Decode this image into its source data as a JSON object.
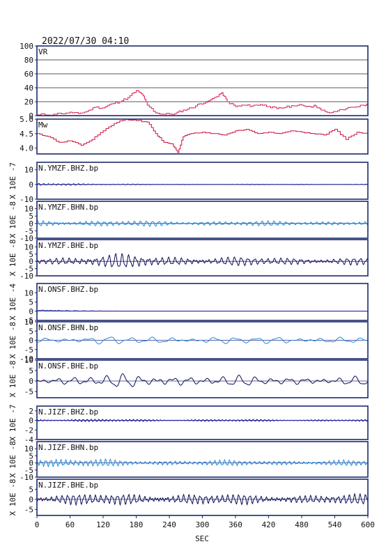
{
  "header": {
    "timestamp": "2022/07/30 04:10"
  },
  "x_axis": {
    "label": "SEC",
    "range": [
      0,
      600
    ],
    "ticks": [
      0,
      60,
      120,
      180,
      240,
      300,
      360,
      420,
      480,
      540,
      600
    ]
  },
  "colors": {
    "frame": "#1a2a6c",
    "vr": "#d6204f",
    "mw": "#c8103a",
    "z": "#1d1d9e",
    "n": "#1e8ad6",
    "e": "#0b0b55",
    "zero": "#2a2a8c"
  },
  "chart_data": [
    {
      "type": "line",
      "name": "VR",
      "label": "VR",
      "ylim": [
        0,
        100
      ],
      "yticks": [
        0,
        20,
        40,
        60,
        80,
        100
      ],
      "ylabel": "",
      "grid": true,
      "x": [
        0,
        30,
        60,
        75,
        90,
        105,
        120,
        135,
        150,
        165,
        180,
        190,
        200,
        215,
        230,
        250,
        265,
        280,
        295,
        310,
        325,
        335,
        345,
        360,
        375,
        390,
        405,
        420,
        435,
        450,
        465,
        480,
        495,
        505,
        515,
        530,
        545,
        560,
        575,
        590,
        600
      ],
      "y": [
        1,
        2,
        5,
        3,
        6,
        12,
        11,
        17,
        20,
        26,
        36,
        31,
        15,
        4,
        2,
        3,
        8,
        11,
        17,
        21,
        27,
        33,
        20,
        13,
        15,
        14,
        16,
        13,
        10,
        12,
        14,
        15,
        13,
        14,
        8,
        4,
        7,
        10,
        12,
        15,
        16
      ]
    },
    {
      "type": "line",
      "name": "Mw",
      "label": "Mw",
      "ylim": [
        3.8,
        5.0
      ],
      "yticks": [
        4.0,
        4.5,
        5.0
      ],
      "ylabel": "",
      "grid": false,
      "x": [
        0,
        20,
        40,
        60,
        80,
        100,
        120,
        140,
        160,
        180,
        200,
        215,
        230,
        245,
        255,
        265,
        280,
        300,
        320,
        340,
        360,
        380,
        400,
        420,
        440,
        460,
        480,
        500,
        520,
        540,
        560,
        580,
        600
      ],
      "y": [
        4.5,
        4.4,
        4.2,
        4.25,
        4.1,
        4.3,
        4.6,
        4.85,
        5.0,
        4.95,
        4.9,
        4.5,
        4.2,
        4.15,
        3.85,
        4.4,
        4.5,
        4.55,
        4.5,
        4.45,
        4.6,
        4.65,
        4.5,
        4.55,
        4.5,
        4.6,
        4.55,
        4.5,
        4.45,
        4.65,
        4.3,
        4.55,
        4.5
      ]
    },
    {
      "type": "line",
      "label": "N.YMZF.BHZ.bp",
      "ylabel": "X 10E -7",
      "ylim": [
        -10,
        15
      ],
      "yticks": [
        -10,
        0,
        10
      ],
      "seriesColor": "z",
      "wave": {
        "amp": [
          1.2,
          0.25,
          0.2,
          0.2
        ],
        "period": 9,
        "offset": 0,
        "seed": 1
      }
    },
    {
      "type": "line",
      "label": "N.YMZF.BHN.bp",
      "ylabel": "X 10E -8",
      "ylim": [
        -10,
        15
      ],
      "yticks": [
        -10,
        -5,
        0,
        5,
        10
      ],
      "seriesColor": "n",
      "wave": {
        "amp": [
          2.2,
          1.8,
          1.6,
          1.5
        ],
        "period": 11,
        "offset": 0,
        "seed": 2
      }
    },
    {
      "type": "line",
      "label": "N.YMZF.BHE.bp",
      "ylabel": "X 10E -8",
      "ylim": [
        -10,
        15
      ],
      "yticks": [
        -10,
        -5,
        0,
        5,
        10
      ],
      "seriesColor": "e",
      "wave": {
        "amp": [
          2.5,
          4.5,
          3.0,
          2.5
        ],
        "period": 12,
        "offset": 0,
        "seed": 3
      }
    },
    {
      "type": "line",
      "label": "N.ONSF.BHZ.bp",
      "ylabel": "X 10E -4",
      "ylim": [
        -5,
        15
      ],
      "yticks": [
        -5,
        0,
        5,
        10
      ],
      "seriesColor": "z",
      "wave": {
        "amp": [
          0.6,
          0.15,
          0.0,
          0.0
        ],
        "period": 15,
        "offset": 0.5,
        "seed": 4,
        "cutoff": 150,
        "decay": true
      }
    },
    {
      "type": "line",
      "label": "N.ONSF.BHN.bp",
      "ylabel": "X 10E -8",
      "ylim": [
        -10,
        10
      ],
      "yticks": [
        -10,
        -5,
        0,
        5,
        10
      ],
      "seriesColor": "n",
      "wave": {
        "amp": [
          1.5,
          2.0,
          1.8,
          1.8
        ],
        "period": 38,
        "offset": 0,
        "seed": 5
      }
    },
    {
      "type": "line",
      "label": "N.ONSF.BHE.bp",
      "ylabel": "X 10E -8",
      "ylim": [
        -8,
        10
      ],
      "yticks": [
        -5,
        0,
        5,
        10
      ],
      "seriesColor": "e",
      "wave": {
        "amp": [
          1.5,
          3.0,
          2.5,
          2.0
        ],
        "period": 30,
        "offset": 0,
        "seed": 6
      }
    },
    {
      "type": "line",
      "label": "N.JIZF.BHZ.bp",
      "ylabel": "X 10E -7",
      "ylim": [
        -4,
        3
      ],
      "yticks": [
        -4,
        -2,
        0,
        2
      ],
      "seriesColor": "z",
      "wave": {
        "amp": [
          0.3,
          0.25,
          0.22,
          0.2
        ],
        "period": 7,
        "offset": 0,
        "seed": 7
      }
    },
    {
      "type": "line",
      "label": "N.JIZF.BHN.bp",
      "ylabel": "X 10E -8",
      "ylim": [
        -10,
        15
      ],
      "yticks": [
        -10,
        -5,
        0,
        5,
        10
      ],
      "seriesColor": "n",
      "wave": {
        "amp": [
          3.5,
          2.0,
          1.8,
          1.8
        ],
        "period": 9,
        "offset": 0,
        "seed": 8
      }
    },
    {
      "type": "line",
      "label": "N.JIZF.BHE.bp",
      "ylabel": "X 10E -8",
      "ylim": [
        -8,
        10
      ],
      "yticks": [
        -5,
        0,
        5
      ],
      "seriesColor": "e",
      "wave": {
        "amp": [
          2.2,
          2.8,
          2.5,
          2.3
        ],
        "period": 10,
        "offset": 0,
        "seed": 9
      }
    }
  ]
}
